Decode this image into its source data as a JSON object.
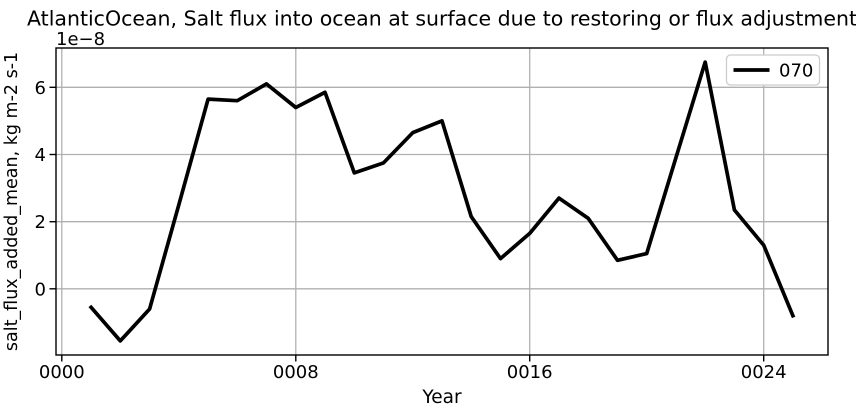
{
  "chart_data": {
    "type": "line",
    "title": "AtlanticOcean, Salt flux into ocean at surface due to restoring or flux adjustment",
    "xlabel": "Year",
    "ylabel": "salt_flux_added_mean, kg m-2 s-1",
    "y_offset_text": "1e−8",
    "x": [
      1,
      2,
      3,
      4,
      5,
      6,
      7,
      8,
      9,
      10,
      11,
      12,
      13,
      14,
      15,
      16,
      17,
      18,
      19,
      20,
      21,
      22,
      23,
      24,
      25
    ],
    "series": [
      {
        "name": "070",
        "color": "#000000",
        "values": [
          -0.55,
          -1.55,
          -0.6,
          2.5,
          5.65,
          5.6,
          6.1,
          5.4,
          5.85,
          3.45,
          3.75,
          4.65,
          5.0,
          2.15,
          0.9,
          1.65,
          2.7,
          2.1,
          0.85,
          1.05,
          3.9,
          6.75,
          2.35,
          1.3,
          -0.8
        ]
      }
    ],
    "xlim": [
      -0.2,
      26.2
    ],
    "ylim": [
      -1.97,
      7.17
    ],
    "xticks": [
      0,
      8,
      16,
      24
    ],
    "xtick_labels": [
      "0000",
      "0008",
      "0016",
      "0024"
    ],
    "yticks": [
      0,
      2,
      4,
      6
    ],
    "ytick_labels": [
      "0",
      "2",
      "4",
      "6"
    ],
    "grid": true,
    "legend": {
      "position": "upper right",
      "entries": [
        "070"
      ]
    },
    "colors": {
      "line": "#000000",
      "grid": "#b0b0b0",
      "spine": "#000000",
      "text": "#000000",
      "legend_border": "#cccccc",
      "legend_background": "#ffffff",
      "axes_background": "#ffffff",
      "figure_background": "#ffffff"
    },
    "units_scale": "1e-8"
  }
}
